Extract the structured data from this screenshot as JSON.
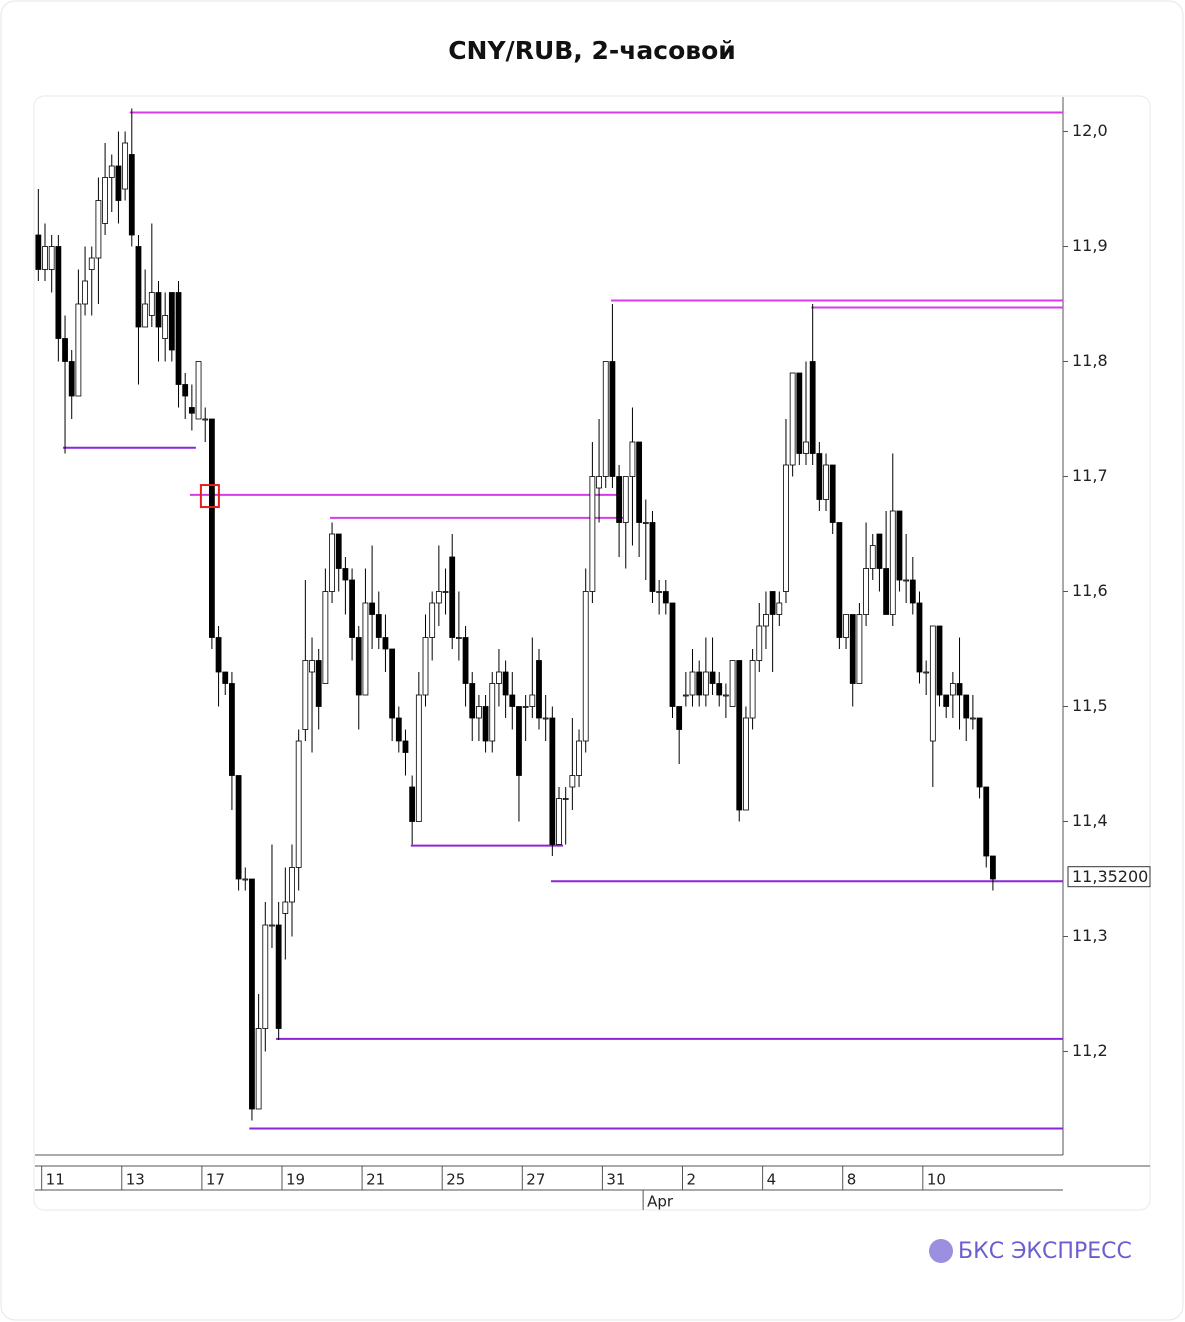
{
  "chart_data": {
    "type": "candlestick",
    "title": "CNY/RUB, 2-часовой",
    "brand": "БКС ЭКСПРЕСС",
    "xlim": [
      0,
      154
    ],
    "ylim": [
      11.11,
      12.03
    ],
    "yticks": [
      {
        "value": 11.2,
        "label": "11,2"
      },
      {
        "value": 11.3,
        "label": "11,3"
      },
      {
        "value": 11.4,
        "label": "11,4"
      },
      {
        "value": 11.5,
        "label": "11,5"
      },
      {
        "value": 11.6,
        "label": "11,6"
      },
      {
        "value": 11.7,
        "label": "11,7"
      },
      {
        "value": 11.8,
        "label": "11,8"
      },
      {
        "value": 11.9,
        "label": "11,9"
      },
      {
        "value": 12.0,
        "label": "12,0"
      }
    ],
    "xticks": [
      {
        "value": 1,
        "label": "11"
      },
      {
        "value": 13,
        "label": "13"
      },
      {
        "value": 25,
        "label": "17"
      },
      {
        "value": 37,
        "label": "19"
      },
      {
        "value": 49,
        "label": "21"
      },
      {
        "value": 61,
        "label": "25"
      },
      {
        "value": 73,
        "label": "27"
      },
      {
        "value": 85,
        "label": "31"
      },
      {
        "value": 97,
        "label": "2"
      },
      {
        "value": 109,
        "label": "4"
      },
      {
        "value": 121,
        "label": "8"
      },
      {
        "value": 133,
        "label": "10"
      }
    ],
    "month_ticks": [
      {
        "value": 91.1,
        "label": "Apr"
      }
    ],
    "last_price": {
      "value": 11.352,
      "label": "11,35200"
    },
    "up_color": "#ffffff",
    "down_color": "#000000",
    "ohlc": [
      [
        11.91,
        11.95,
        11.87,
        11.88
      ],
      [
        11.88,
        11.92,
        11.87,
        11.9
      ],
      [
        11.88,
        11.91,
        11.86,
        11.9
      ],
      [
        11.9,
        11.91,
        11.8,
        11.82
      ],
      [
        11.82,
        11.84,
        11.72,
        11.8
      ],
      [
        11.8,
        11.81,
        11.75,
        11.77
      ],
      [
        11.77,
        11.88,
        11.77,
        11.85
      ],
      [
        11.85,
        11.9,
        11.84,
        11.87
      ],
      [
        11.88,
        11.9,
        11.84,
        11.89
      ],
      [
        11.89,
        11.96,
        11.85,
        11.94
      ],
      [
        11.92,
        11.99,
        11.91,
        11.96
      ],
      [
        11.96,
        11.98,
        11.93,
        11.97
      ],
      [
        11.97,
        12.0,
        11.92,
        11.94
      ],
      [
        11.95,
        12.0,
        11.94,
        11.99
      ],
      [
        11.98,
        12.02,
        11.9,
        11.91
      ],
      [
        11.9,
        11.91,
        11.78,
        11.83
      ],
      [
        11.83,
        11.88,
        11.83,
        11.85
      ],
      [
        11.84,
        11.92,
        11.83,
        11.86
      ],
      [
        11.86,
        11.87,
        11.8,
        11.83
      ],
      [
        11.82,
        11.86,
        11.8,
        11.84
      ],
      [
        11.86,
        11.86,
        11.8,
        11.81
      ],
      [
        11.86,
        11.87,
        11.76,
        11.78
      ],
      [
        11.78,
        11.79,
        11.75,
        11.77
      ],
      [
        11.76,
        11.78,
        11.74,
        11.755
      ],
      [
        11.75,
        11.8,
        11.75,
        11.8
      ],
      [
        11.75,
        11.76,
        11.73,
        11.75
      ],
      [
        11.75,
        11.75,
        11.55,
        11.56
      ],
      [
        11.56,
        11.57,
        11.5,
        11.53
      ],
      [
        11.53,
        11.53,
        11.51,
        11.52
      ],
      [
        11.52,
        11.53,
        11.41,
        11.44
      ],
      [
        11.44,
        11.44,
        11.34,
        11.35
      ],
      [
        11.35,
        11.36,
        11.34,
        11.35
      ],
      [
        11.35,
        11.35,
        11.14,
        11.15
      ],
      [
        11.15,
        11.25,
        11.15,
        11.22
      ],
      [
        11.22,
        11.33,
        11.2,
        11.31
      ],
      [
        11.31,
        11.38,
        11.29,
        11.31
      ],
      [
        11.31,
        11.33,
        11.21,
        11.22
      ],
      [
        11.32,
        11.36,
        11.28,
        11.33
      ],
      [
        11.33,
        11.38,
        11.3,
        11.36
      ],
      [
        11.36,
        11.48,
        11.34,
        11.47
      ],
      [
        11.48,
        11.61,
        11.47,
        11.54
      ],
      [
        11.53,
        11.56,
        11.46,
        11.54
      ],
      [
        11.54,
        11.55,
        11.48,
        11.5
      ],
      [
        11.52,
        11.62,
        11.52,
        11.6
      ],
      [
        11.6,
        11.66,
        11.59,
        11.65
      ],
      [
        11.65,
        11.65,
        11.6,
        11.62
      ],
      [
        11.62,
        11.63,
        11.58,
        11.61
      ],
      [
        11.61,
        11.62,
        11.54,
        11.56
      ],
      [
        11.56,
        11.57,
        11.48,
        11.51
      ],
      [
        11.51,
        11.62,
        11.51,
        11.59
      ],
      [
        11.59,
        11.64,
        11.55,
        11.58
      ],
      [
        11.58,
        11.6,
        11.55,
        11.56
      ],
      [
        11.56,
        11.58,
        11.53,
        11.55
      ],
      [
        11.55,
        11.55,
        11.47,
        11.49
      ],
      [
        11.49,
        11.5,
        11.46,
        11.47
      ],
      [
        11.47,
        11.48,
        11.44,
        11.46
      ],
      [
        11.43,
        11.44,
        11.38,
        11.4
      ],
      [
        11.4,
        11.53,
        11.4,
        11.51
      ],
      [
        11.51,
        11.58,
        11.5,
        11.56
      ],
      [
        11.56,
        11.6,
        11.54,
        11.59
      ],
      [
        11.59,
        11.64,
        11.57,
        11.6
      ],
      [
        11.6,
        11.62,
        11.58,
        11.6
      ],
      [
        11.63,
        11.65,
        11.55,
        11.56
      ],
      [
        11.56,
        11.6,
        11.54,
        11.56
      ],
      [
        11.56,
        11.57,
        11.5,
        11.52
      ],
      [
        11.52,
        11.53,
        11.47,
        11.49
      ],
      [
        11.49,
        11.51,
        11.47,
        11.5
      ],
      [
        11.5,
        11.51,
        11.46,
        11.47
      ],
      [
        11.47,
        11.53,
        11.46,
        11.52
      ],
      [
        11.52,
        11.55,
        11.5,
        11.53
      ],
      [
        11.53,
        11.54,
        11.49,
        11.51
      ],
      [
        11.51,
        11.53,
        11.48,
        11.5
      ],
      [
        11.5,
        11.5,
        11.4,
        11.44
      ],
      [
        11.5,
        11.51,
        11.47,
        11.5
      ],
      [
        11.5,
        11.56,
        11.49,
        11.51
      ],
      [
        11.54,
        11.55,
        11.48,
        11.49
      ],
      [
        11.49,
        11.51,
        11.47,
        11.49
      ],
      [
        11.49,
        11.5,
        11.37,
        11.38
      ],
      [
        11.38,
        11.43,
        11.38,
        11.42
      ],
      [
        11.42,
        11.43,
        11.38,
        11.42
      ],
      [
        11.43,
        11.49,
        11.41,
        11.44
      ],
      [
        11.44,
        11.48,
        11.43,
        11.47
      ],
      [
        11.47,
        11.62,
        11.46,
        11.6
      ],
      [
        11.6,
        11.73,
        11.59,
        11.7
      ],
      [
        11.69,
        11.75,
        11.66,
        11.7
      ],
      [
        11.7,
        11.8,
        11.69,
        11.8
      ],
      [
        11.8,
        11.85,
        11.69,
        11.7
      ],
      [
        11.7,
        11.71,
        11.63,
        11.66
      ],
      [
        11.66,
        11.7,
        11.62,
        11.7
      ],
      [
        11.7,
        11.76,
        11.64,
        11.73
      ],
      [
        11.73,
        11.73,
        11.63,
        11.66
      ],
      [
        11.66,
        11.68,
        11.61,
        11.66
      ],
      [
        11.66,
        11.67,
        11.59,
        11.6
      ],
      [
        11.6,
        11.61,
        11.58,
        11.6
      ],
      [
        11.6,
        11.61,
        11.58,
        11.59
      ],
      [
        11.59,
        11.59,
        11.49,
        11.5
      ],
      [
        11.5,
        11.5,
        11.45,
        11.48
      ],
      [
        11.51,
        11.53,
        11.5,
        11.51
      ],
      [
        11.51,
        11.55,
        11.5,
        11.53
      ],
      [
        11.53,
        11.54,
        11.5,
        11.51
      ],
      [
        11.51,
        11.56,
        11.5,
        11.53
      ],
      [
        11.53,
        11.56,
        11.51,
        11.52
      ],
      [
        11.52,
        11.53,
        11.5,
        11.51
      ],
      [
        11.51,
        11.52,
        11.49,
        11.51
      ],
      [
        11.5,
        11.54,
        11.5,
        11.54
      ],
      [
        11.54,
        11.54,
        11.4,
        11.41
      ],
      [
        11.41,
        11.5,
        11.41,
        11.49
      ],
      [
        11.49,
        11.55,
        11.48,
        11.54
      ],
      [
        11.54,
        11.59,
        11.53,
        11.57
      ],
      [
        11.57,
        11.6,
        11.55,
        11.58
      ],
      [
        11.6,
        11.6,
        11.53,
        11.58
      ],
      [
        11.58,
        11.6,
        11.57,
        11.59
      ],
      [
        11.6,
        11.75,
        11.59,
        11.71
      ],
      [
        11.71,
        11.79,
        11.7,
        11.79
      ],
      [
        11.79,
        11.79,
        11.71,
        11.72
      ],
      [
        11.72,
        11.8,
        11.71,
        11.73
      ],
      [
        11.8,
        11.85,
        11.71,
        11.72
      ],
      [
        11.72,
        11.73,
        11.67,
        11.68
      ],
      [
        11.68,
        11.72,
        11.67,
        11.71
      ],
      [
        11.71,
        11.71,
        11.65,
        11.66
      ],
      [
        11.66,
        11.66,
        11.55,
        11.56
      ],
      [
        11.56,
        11.58,
        11.55,
        11.58
      ],
      [
        11.58,
        11.58,
        11.5,
        11.52
      ],
      [
        11.52,
        11.59,
        11.52,
        11.58
      ],
      [
        11.58,
        11.66,
        11.57,
        11.62
      ],
      [
        11.62,
        11.65,
        11.61,
        11.64
      ],
      [
        11.65,
        11.65,
        11.6,
        11.62
      ],
      [
        11.62,
        11.67,
        11.58,
        11.58
      ],
      [
        11.58,
        11.72,
        11.57,
        11.67
      ],
      [
        11.67,
        11.67,
        11.6,
        11.61
      ],
      [
        11.61,
        11.65,
        11.59,
        11.61
      ],
      [
        11.61,
        11.63,
        11.58,
        11.59
      ],
      [
        11.59,
        11.6,
        11.52,
        11.53
      ],
      [
        11.53,
        11.54,
        11.51,
        11.53
      ],
      [
        11.47,
        11.57,
        11.43,
        11.57
      ],
      [
        11.57,
        11.57,
        11.5,
        11.51
      ],
      [
        11.51,
        11.51,
        11.49,
        11.5
      ],
      [
        11.51,
        11.53,
        11.49,
        11.52
      ],
      [
        11.52,
        11.56,
        11.48,
        11.51
      ],
      [
        11.51,
        11.51,
        11.47,
        11.49
      ],
      [
        11.49,
        11.51,
        11.48,
        11.49
      ],
      [
        11.49,
        11.49,
        11.42,
        11.43
      ],
      [
        11.43,
        11.43,
        11.36,
        11.37
      ],
      [
        11.37,
        11.37,
        11.34,
        11.35
      ]
    ],
    "levels": [
      {
        "value": 12.0165,
        "x_start": 14.2,
        "color": "#d63be8"
      },
      {
        "value": 11.725,
        "x_start": 4.2,
        "x_end": 24.1,
        "color": "#8e24d8"
      },
      {
        "value": 11.684,
        "x_start": 23.2,
        "x_end": 87.9,
        "color": "#d63be8"
      },
      {
        "value": 11.664,
        "x_start": 44.2,
        "x_end": 88.4,
        "color": "#d63be8"
      },
      {
        "value": 11.853,
        "x_start": 86.3,
        "color": "#d63be8"
      },
      {
        "value": 11.847,
        "x_start": 116.3,
        "color": "#d63be8"
      },
      {
        "value": 11.379,
        "x_start": 56.3,
        "x_end": 79.1,
        "color": "#8e24d8"
      },
      {
        "value": 11.348,
        "x_start": 77.3,
        "color": "#8e24d8"
      },
      {
        "value": 11.211,
        "x_start": 36.1,
        "color": "#8e24d8"
      },
      {
        "value": 11.133,
        "x_start": 32.1,
        "color": "#8e24d8"
      }
    ],
    "marker": {
      "x": 26.2,
      "value": 11.683,
      "color": "#e0201c"
    }
  }
}
